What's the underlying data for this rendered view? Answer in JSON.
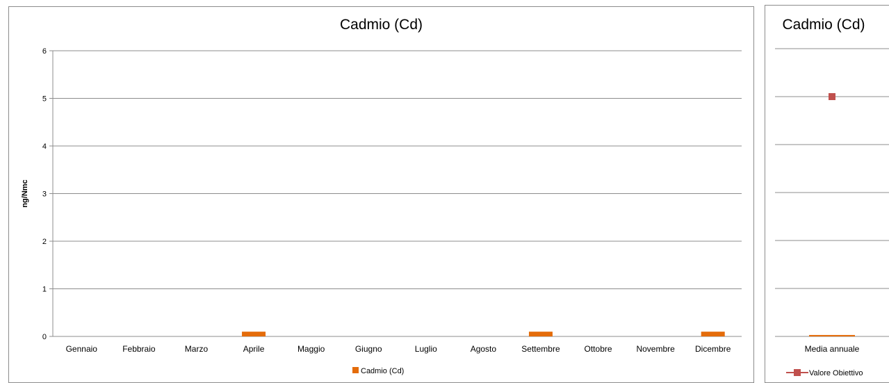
{
  "chart_data": [
    {
      "type": "bar",
      "title": "Cadmio (Cd)",
      "xlabel": "",
      "ylabel": "ng/Nmc",
      "ylim": [
        0,
        6
      ],
      "yticks": [
        0,
        1,
        2,
        3,
        4,
        5,
        6
      ],
      "grid": true,
      "legend_position": "bottom",
      "categories": [
        "Gennaio",
        "Febbraio",
        "Marzo",
        "Aprile",
        "Maggio",
        "Giugno",
        "Luglio",
        "Agosto",
        "Settembre",
        "Ottobre",
        "Novembre",
        "Dicembre"
      ],
      "series": [
        {
          "name": "Cadmio (Cd)",
          "color": "#e46c0a",
          "values": [
            0,
            0,
            0,
            0.1,
            0,
            0,
            0,
            0,
            0.1,
            0,
            0,
            0.1
          ]
        }
      ]
    },
    {
      "type": "bar",
      "title": "Cadmio (Cd)",
      "ylim": [
        0,
        6
      ],
      "grid": true,
      "legend_position": "bottom",
      "categories": [
        "Media annuale"
      ],
      "series": [
        {
          "kind": "bar",
          "color": "#e46c0a",
          "values": [
            0.03
          ]
        },
        {
          "kind": "marker",
          "name": "Valore Obiettivo",
          "color": "#c0504d",
          "marker": "square",
          "values": [
            5
          ]
        }
      ]
    }
  ]
}
